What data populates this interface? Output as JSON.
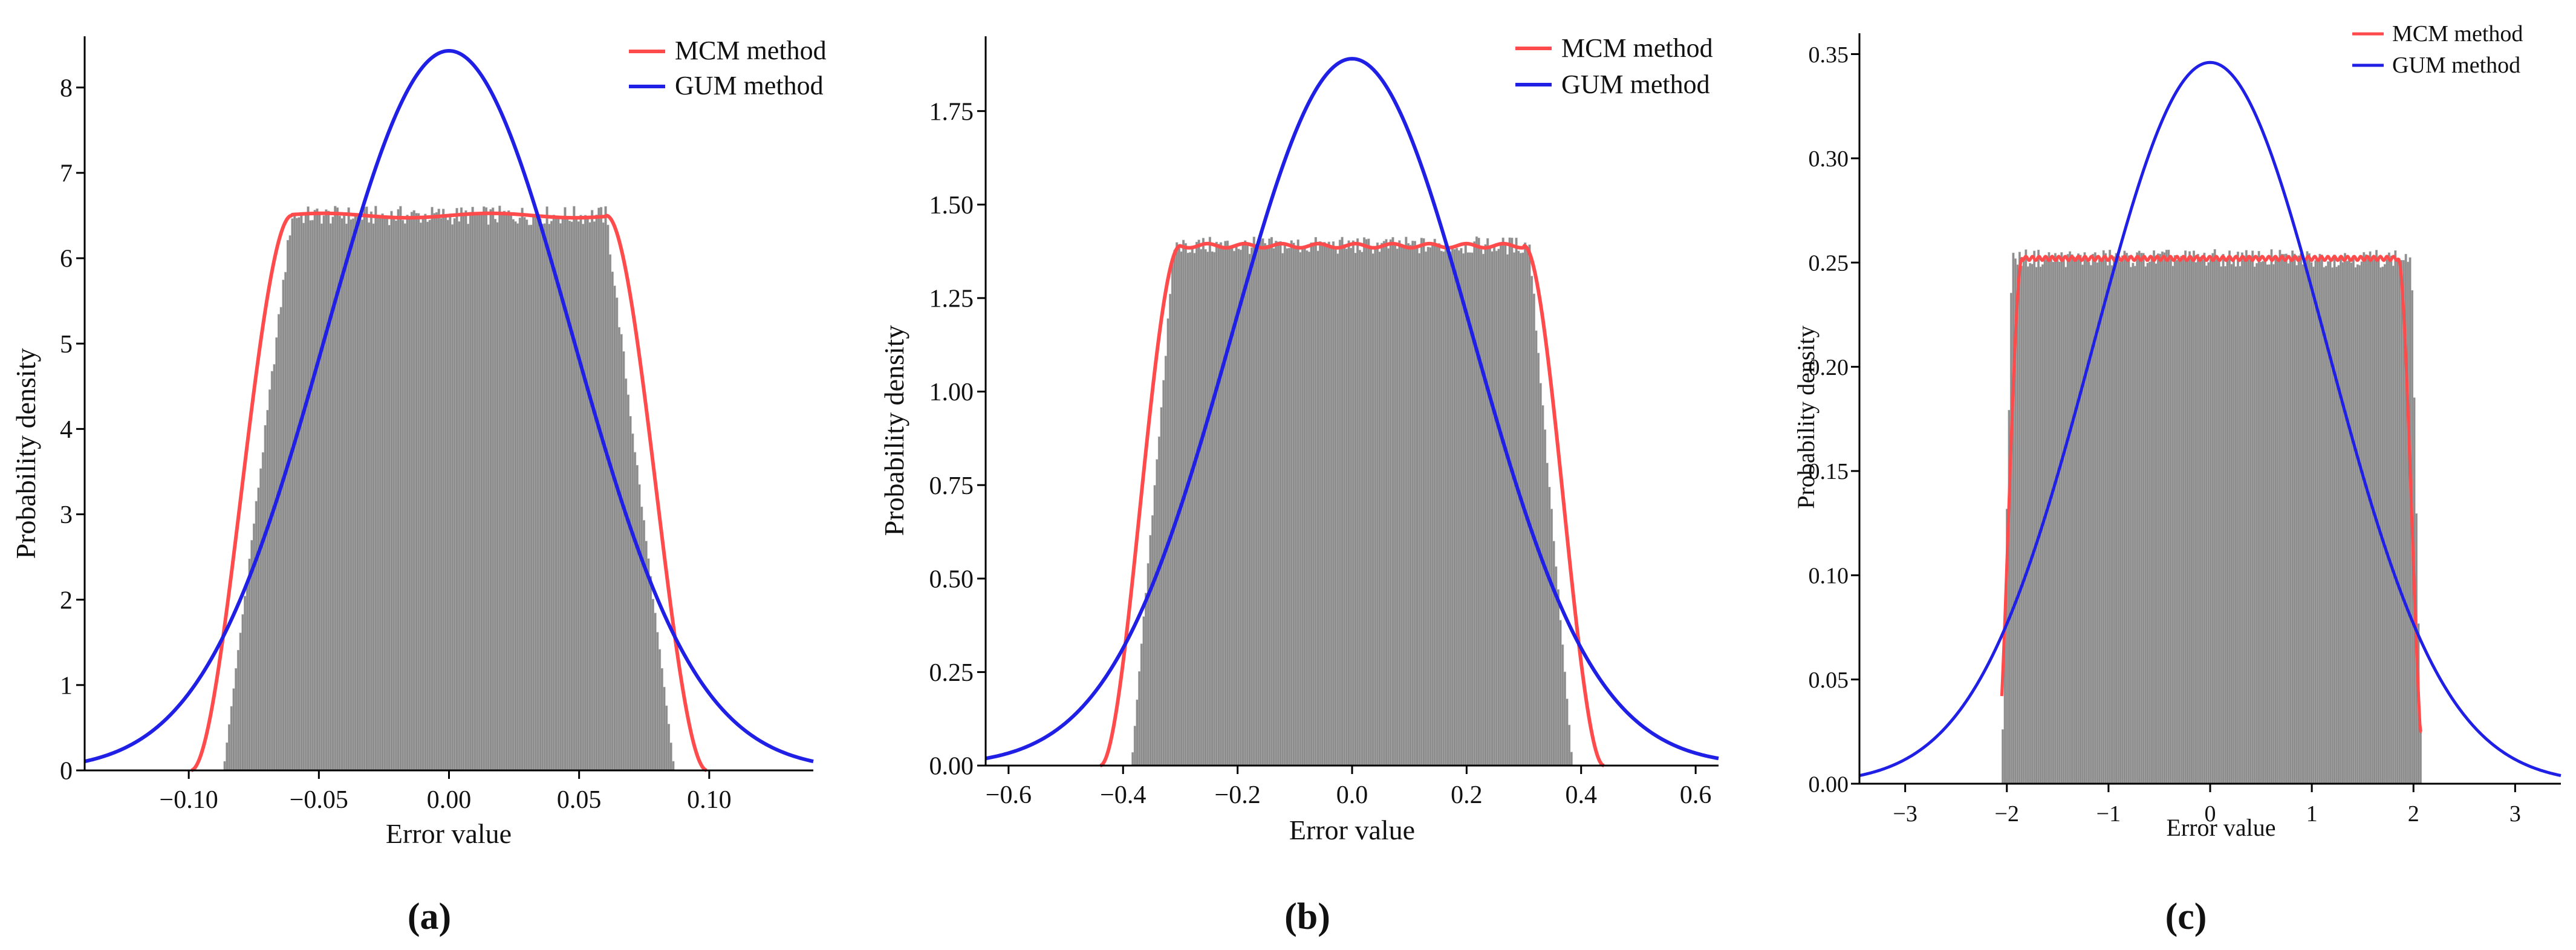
{
  "figure": {
    "background": "#ffffff"
  },
  "colors": {
    "mcm": "#ff4b4b",
    "gum": "#1f1fe6",
    "hist": "#8c8c8c",
    "hist_edge": "#b4b4b4",
    "axis": "#000000"
  },
  "chart_data": [
    {
      "type": "bar+line",
      "panel_label": "(a)",
      "xlabel": "Error value",
      "ylabel": "Probability density",
      "xlim": [
        -0.14,
        0.14
      ],
      "ylim": [
        0,
        8.6
      ],
      "xticks": [
        -0.1,
        -0.05,
        0.0,
        0.05,
        0.1
      ],
      "xtick_labels": [
        "−0.10",
        "−0.05",
        "0.00",
        "0.05",
        "0.10"
      ],
      "yticks": [
        0,
        1,
        2,
        3,
        4,
        5,
        6,
        7,
        8
      ],
      "ytick_labels": [
        "0",
        "1",
        "2",
        "3",
        "4",
        "5",
        "6",
        "7",
        "8"
      ],
      "legend": [
        {
          "name": "MCM method",
          "color": "#ff4b4b"
        },
        {
          "name": "GUM method",
          "color": "#1f1fe6"
        }
      ],
      "legend_position": "top-right",
      "histogram": {
        "support": [
          -0.0866,
          0.0866
        ],
        "plateau": [
          -0.0604,
          0.0604
        ],
        "peak_density": 6.5,
        "bins": 200
      },
      "series": [
        {
          "name": "MCM method",
          "kind": "kde",
          "color": "#ff4b4b",
          "plateau": [
            -0.0604,
            0.0604
          ],
          "support": [
            -0.0992,
            0.0992
          ],
          "peak": 6.5,
          "range": [
            -0.099,
            0.099
          ]
        },
        {
          "name": "GUM method",
          "kind": "gaussian",
          "color": "#1f1fe6",
          "mean": 0.0,
          "sd": 0.0473,
          "peak": 8.43,
          "range": [
            -0.14,
            0.14
          ]
        }
      ]
    },
    {
      "type": "bar+line",
      "panel_label": "(b)",
      "xlabel": "Error value",
      "ylabel": "Probability density",
      "xlim": [
        -0.64,
        0.64
      ],
      "ylim": [
        0,
        1.95
      ],
      "xticks": [
        -0.6,
        -0.4,
        -0.2,
        0.0,
        0.2,
        0.4,
        0.6
      ],
      "xtick_labels": [
        "−0.6",
        "−0.4",
        "−0.2",
        "0.0",
        "0.2",
        "0.4",
        "0.6"
      ],
      "yticks": [
        0.0,
        0.25,
        0.5,
        0.75,
        1.0,
        1.25,
        1.5,
        1.75
      ],
      "ytick_labels": [
        "0.00",
        "0.25",
        "0.50",
        "0.75",
        "1.00",
        "1.25",
        "1.50",
        "1.75"
      ],
      "legend": [
        {
          "name": "MCM method",
          "color": "#ff4b4b"
        },
        {
          "name": "GUM method",
          "color": "#1f1fe6"
        }
      ],
      "legend_position": "top-right",
      "histogram": {
        "support": [
          -0.385,
          0.385
        ],
        "plateau": [
          -0.31,
          0.31
        ],
        "peak_density": 1.39,
        "bins": 200
      },
      "series": [
        {
          "name": "MCM method",
          "kind": "kde",
          "color": "#ff4b4b",
          "plateau": [
            -0.3,
            0.3
          ],
          "support": [
            -0.44,
            0.44
          ],
          "peak": 1.39,
          "range": [
            -0.44,
            0.44
          ]
        },
        {
          "name": "GUM method",
          "kind": "gaussian",
          "color": "#1f1fe6",
          "mean": 0.0,
          "sd": 0.2111,
          "peak": 1.89,
          "range": [
            -0.64,
            0.64
          ]
        }
      ]
    },
    {
      "type": "bar+line",
      "panel_label": "(c)",
      "xlabel": "Error value",
      "ylabel": "Probability density",
      "xlim": [
        -3.45,
        3.45
      ],
      "ylim": [
        0,
        0.36
      ],
      "xticks": [
        -3,
        -2,
        -1,
        0,
        1,
        2,
        3
      ],
      "xtick_labels": [
        "−3",
        "−2",
        "−1",
        "0",
        "1",
        "2",
        "3"
      ],
      "yticks": [
        0.0,
        0.05,
        0.1,
        0.15,
        0.2,
        0.25,
        0.3,
        0.35
      ],
      "ytick_labels": [
        "0.00",
        "0.05",
        "0.10",
        "0.15",
        "0.20",
        "0.25",
        "0.30",
        "0.35"
      ],
      "legend": [
        {
          "name": "MCM method",
          "color": "#ff4b4b"
        },
        {
          "name": "GUM method",
          "color": "#1f1fe6"
        }
      ],
      "legend_position": "top-right",
      "histogram": {
        "support": [
          -2.05,
          2.08
        ],
        "plateau": [
          -1.95,
          1.98
        ],
        "peak_density": 0.252,
        "bins": 200
      },
      "series": [
        {
          "name": "MCM method",
          "kind": "kde",
          "color": "#ff4b4b",
          "plateau": [
            -1.85,
            1.85
          ],
          "support": [
            -2.08,
            2.12
          ],
          "peak": 0.252,
          "range": [
            -2.05,
            2.08
          ],
          "endpoint_density": 0.025
        },
        {
          "name": "GUM method",
          "kind": "gaussian",
          "color": "#1f1fe6",
          "mean": 0.0,
          "sd": 1.152,
          "peak": 0.346,
          "range": [
            -3.45,
            3.45
          ]
        }
      ]
    }
  ]
}
